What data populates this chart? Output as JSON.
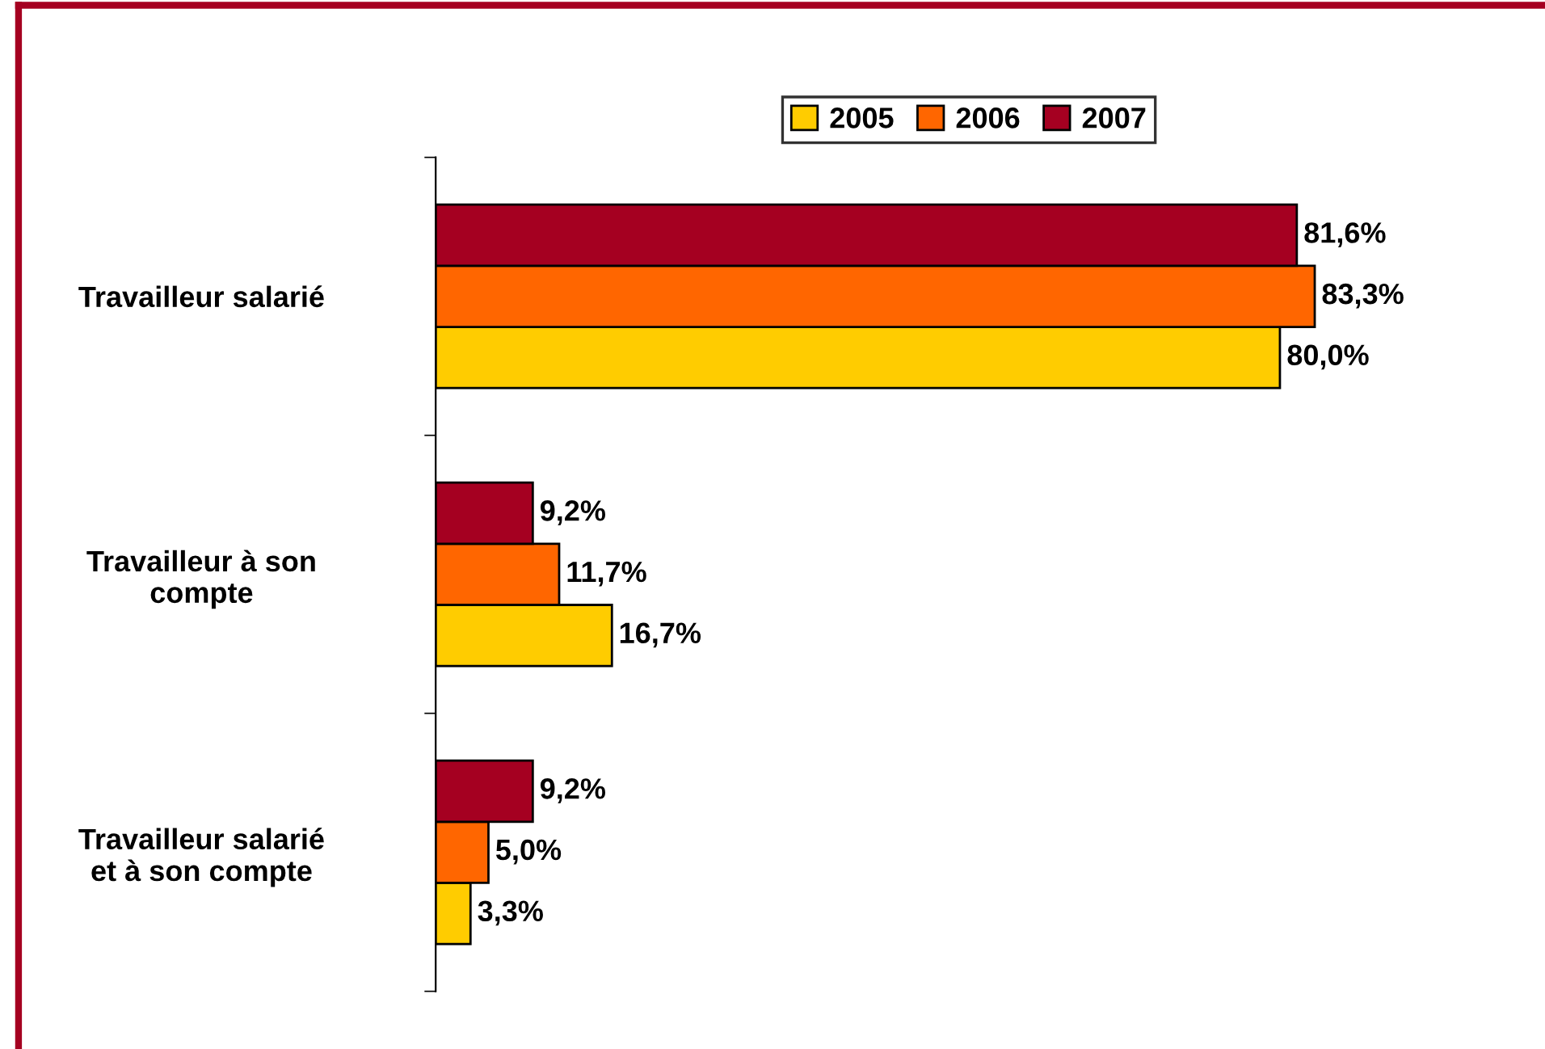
{
  "chart_data": {
    "type": "bar",
    "orientation": "horizontal",
    "categories": [
      "Travailleur salarié",
      "Travailleur à son\ncompte",
      "Travailleur salarié\net à son compte"
    ],
    "series": [
      {
        "name": "2005",
        "color": "#ffcc00",
        "values": [
          80.0,
          16.7,
          3.3
        ],
        "value_labels": [
          "80,0%",
          "16,7%",
          "3,3%"
        ]
      },
      {
        "name": "2006",
        "color": "#ff6600",
        "values": [
          83.3,
          11.7,
          5.0
        ],
        "value_labels": [
          "83,3%",
          "11,7%",
          "5,0%"
        ]
      },
      {
        "name": "2007",
        "color": "#a50021",
        "values": [
          81.6,
          9.2,
          9.2
        ],
        "value_labels": [
          "81,6%",
          "9,2%",
          "9,2%"
        ]
      }
    ],
    "legend": "top right",
    "grid": false,
    "tick_labels": "y"
  }
}
